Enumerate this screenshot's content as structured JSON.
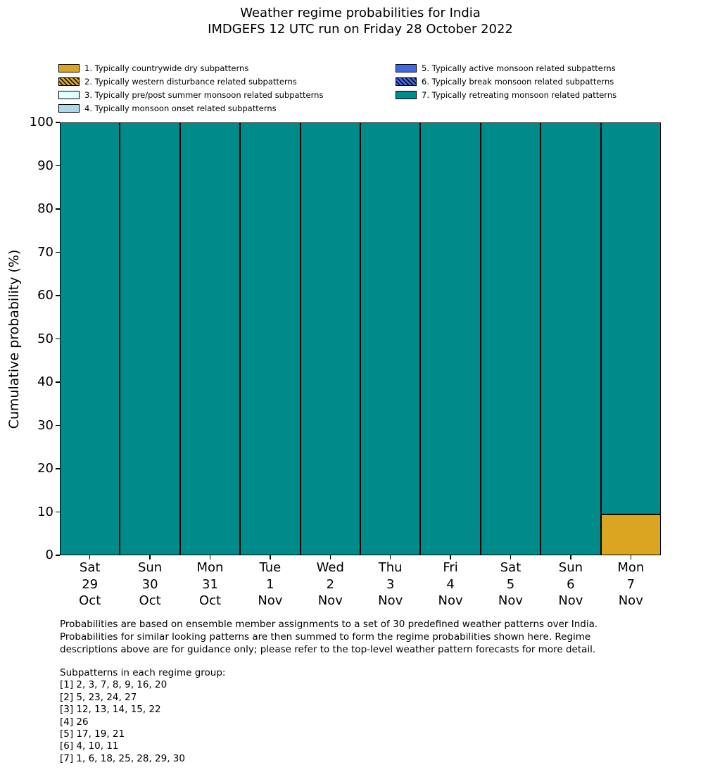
{
  "title": "Weather regime probabilities for India",
  "subtitle": "IMDGEFS 12 UTC run on Friday 28 October 2022",
  "colors": {
    "background": "#FFFFFF",
    "bar_edge": "#000000",
    "regime1_dry": "#DAA520",
    "regime2_western_disturbance": "#DAA520",
    "regime3_prepost_summer_monsoon": "#E0FFFF",
    "regime4_monsoon_onset": "#ADD8E6",
    "regime5_active_monsoon": "#4169E1",
    "regime6_break_monsoon": "#4169E1",
    "regime7_retreating_monsoon": "#008B8B"
  },
  "chart_data": {
    "type": "bar",
    "stacked": true,
    "title": "Weather regime probabilities for India",
    "subtitle": "IMDGEFS 12 UTC run on Friday 28 October 2022",
    "xlabel": "",
    "ylabel": "Cumulative probability (%)",
    "ylim": [
      0,
      100
    ],
    "ytick_step": 10,
    "grid": false,
    "legend_position": "above plot, two columns",
    "categories": [
      "Sat 29 Oct",
      "Sun 30 Oct",
      "Mon 31 Oct",
      "Tue 1 Nov",
      "Wed 2 Nov",
      "Thu 3 Nov",
      "Fri 4 Nov",
      "Sat 5 Nov",
      "Sun 6 Nov",
      "Mon 7 Nov"
    ],
    "category_lines": [
      [
        "Sat",
        "29",
        "Oct"
      ],
      [
        "Sun",
        "30",
        "Oct"
      ],
      [
        "Mon",
        "31",
        "Oct"
      ],
      [
        "Tue",
        "1",
        "Nov"
      ],
      [
        "Wed",
        "2",
        "Nov"
      ],
      [
        "Thu",
        "3",
        "Nov"
      ],
      [
        "Fri",
        "4",
        "Nov"
      ],
      [
        "Sat",
        "5",
        "Nov"
      ],
      [
        "Sun",
        "6",
        "Nov"
      ],
      [
        "Mon",
        "7",
        "Nov"
      ]
    ],
    "series": [
      {
        "name": "1. Typically countrywide dry subpatterns",
        "color": "#DAA520",
        "hatch": false,
        "values": [
          0,
          0,
          0,
          0,
          0,
          0,
          0,
          0,
          0,
          9.5
        ]
      },
      {
        "name": "2. Typically western disturbance related subpatterns",
        "color": "#DAA520",
        "hatch": true,
        "values": [
          0,
          0,
          0,
          0,
          0,
          0,
          0,
          0,
          0,
          0
        ]
      },
      {
        "name": "3. Typically pre/post summer monsoon related subpatterns",
        "color": "#E0FFFF",
        "hatch": false,
        "values": [
          0,
          0,
          0,
          0,
          0,
          0,
          0,
          0,
          0,
          0
        ]
      },
      {
        "name": "4. Typically monsoon onset related subpatterns",
        "color": "#ADD8E6",
        "hatch": false,
        "values": [
          0,
          0,
          0,
          0,
          0,
          0,
          0,
          0,
          0,
          0
        ]
      },
      {
        "name": "5. Typically active monsoon related subpatterns",
        "color": "#4169E1",
        "hatch": false,
        "values": [
          0,
          0,
          0,
          0,
          0,
          0,
          0,
          0,
          0,
          0
        ]
      },
      {
        "name": "6. Typically break monsoon related subpatterns",
        "color": "#4169E1",
        "hatch": true,
        "values": [
          0,
          0,
          0,
          0,
          0,
          0,
          0,
          0,
          0,
          0
        ]
      },
      {
        "name": "7. Typically retreating monsoon related patterns",
        "color": "#008B8B",
        "hatch": false,
        "values": [
          100,
          100,
          100,
          100,
          100,
          100,
          100,
          100,
          100,
          90.5
        ]
      }
    ]
  },
  "footer": {
    "paragraph_lines": [
      "Probabilities are based on ensemble member assignments to a set of 30 predefined weather patterns over India.",
      "Probabilities for similar looking patterns are then summed to form the regime probabilities shown here. Regime",
      "descriptions above are for guidance only; please refer to the top-level weather pattern forecasts for more detail."
    ],
    "subpatterns_heading": "Subpatterns in each regime group:",
    "subpattern_lines": [
      "[1] 2, 3, 7, 8, 9, 16, 20",
      "[2] 5, 23, 24, 27",
      "[3] 12, 13, 14, 15, 22",
      "[4] 26",
      "[5] 17, 19, 21",
      "[6] 4, 10, 11",
      "[7] 1, 6, 18, 25, 28, 29, 30"
    ]
  }
}
